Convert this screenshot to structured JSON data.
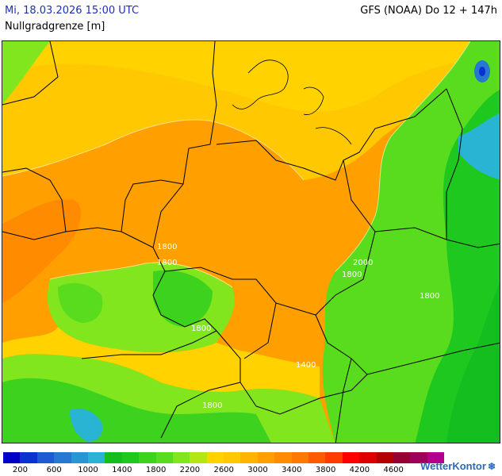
{
  "header": {
    "datetime": "Mi, 18.03.2026 15:00 UTC",
    "parameter": "Nullgradgrenze [m]",
    "model_run": "GFS (NOAA) Do 12 + 147h"
  },
  "map": {
    "contour_labels": [
      "1800",
      "1800",
      "2000",
      "1800",
      "1800",
      "1800",
      "1400",
      "1800"
    ]
  },
  "legend": {
    "colors": [
      "#0000c8",
      "#0a32d2",
      "#1e5ad2",
      "#2878d2",
      "#2896d2",
      "#28b4d2",
      "#14be1e",
      "#1ec81e",
      "#3cd21e",
      "#5adc1e",
      "#82e61e",
      "#b4e614",
      "#ffd200",
      "#ffc800",
      "#ffb400",
      "#ffa000",
      "#ff8c00",
      "#ff7800",
      "#ff5a00",
      "#ff3c00",
      "#ff0000",
      "#dc0000",
      "#b40000",
      "#960032",
      "#a0005a",
      "#b4008c"
    ],
    "labels": [
      "200",
      "600",
      "1000",
      "1400",
      "1800",
      "2200",
      "2600",
      "3000",
      "3400",
      "3800",
      "4200",
      "4600"
    ]
  },
  "brand": {
    "name": "WetterKontor",
    "icon": "snowflake-icon"
  }
}
